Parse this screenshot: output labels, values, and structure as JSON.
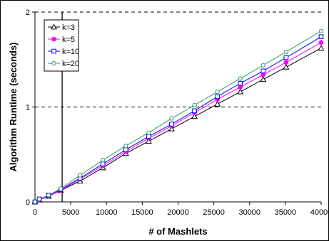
{
  "chart_data": {
    "type": "line",
    "xlabel": "# of Mashlets",
    "ylabel": "Algorithm Runtime (seconds)",
    "xlim": [
      0,
      40000
    ],
    "ylim": [
      0,
      2
    ],
    "x_ticks": [
      0,
      5000,
      10000,
      15000,
      20000,
      25000,
      30000,
      35000,
      40000
    ],
    "y_ticks": [
      0,
      1,
      2
    ],
    "gridlines_y": [
      1
    ],
    "vertical_marker_x": 3800,
    "legend_position": "top-left",
    "x": [
      0,
      600,
      1900,
      3600,
      6300,
      9500,
      12700,
      15900,
      19100,
      22300,
      25500,
      28700,
      31900,
      35100,
      40000
    ],
    "series": [
      {
        "name": "k=3",
        "marker": "open-triangle",
        "color": "#000000",
        "values": [
          0.0,
          0.02,
          0.06,
          0.12,
          0.22,
          0.36,
          0.51,
          0.64,
          0.77,
          0.9,
          1.03,
          1.16,
          1.29,
          1.42,
          1.62
        ]
      },
      {
        "name": "k=5",
        "marker": "filled-circle",
        "color": "#ff00ff",
        "values": [
          0.0,
          0.02,
          0.06,
          0.12,
          0.24,
          0.38,
          0.53,
          0.67,
          0.8,
          0.94,
          1.08,
          1.21,
          1.34,
          1.47,
          1.68
        ]
      },
      {
        "name": "k=10",
        "marker": "open-square",
        "color": "#0000ff",
        "values": [
          0.0,
          0.03,
          0.07,
          0.13,
          0.25,
          0.4,
          0.55,
          0.69,
          0.82,
          0.96,
          1.11,
          1.25,
          1.38,
          1.52,
          1.74
        ]
      },
      {
        "name": "k=20",
        "marker": "open-circle",
        "color": "#339966",
        "values": [
          0.0,
          0.03,
          0.07,
          0.14,
          0.28,
          0.44,
          0.59,
          0.73,
          0.88,
          1.02,
          1.16,
          1.3,
          1.44,
          1.58,
          1.8
        ]
      }
    ]
  }
}
